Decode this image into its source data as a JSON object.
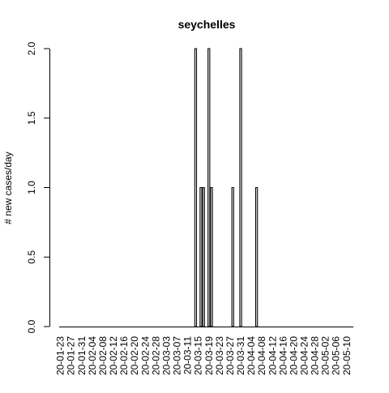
{
  "chart_data": {
    "type": "bar",
    "title": "seychelles",
    "xlabel": "",
    "ylabel": "# new cases/day",
    "ylim": [
      0,
      2
    ],
    "yticks": [
      "0.0",
      "0.5",
      "1.0",
      "1.5",
      "2.0"
    ],
    "start_date": "2020-01-23",
    "end_date": "2020-05-13",
    "xtick_labels": [
      "20-01-23",
      "20-01-27",
      "20-01-31",
      "20-02-04",
      "20-02-08",
      "20-02-12",
      "20-02-16",
      "20-02-20",
      "20-02-24",
      "20-02-28",
      "20-03-03",
      "20-03-07",
      "20-03-11",
      "20-03-15",
      "20-03-19",
      "20-03-23",
      "20-03-27",
      "20-03-31",
      "20-04-04",
      "20-04-08",
      "20-04-12",
      "20-04-16",
      "20-04-20",
      "20-04-24",
      "20-04-28",
      "20-05-02",
      "20-05-06",
      "20-05-10"
    ],
    "series": [
      {
        "points": [
          {
            "date": "2020-03-14",
            "value": 2
          },
          {
            "date": "2020-03-16",
            "value": 1
          },
          {
            "date": "2020-03-17",
            "value": 1
          },
          {
            "date": "2020-03-19",
            "value": 2
          },
          {
            "date": "2020-03-20",
            "value": 1
          },
          {
            "date": "2020-03-28",
            "value": 1
          },
          {
            "date": "2020-03-31",
            "value": 2
          },
          {
            "date": "2020-04-06",
            "value": 1
          }
        ]
      }
    ]
  }
}
